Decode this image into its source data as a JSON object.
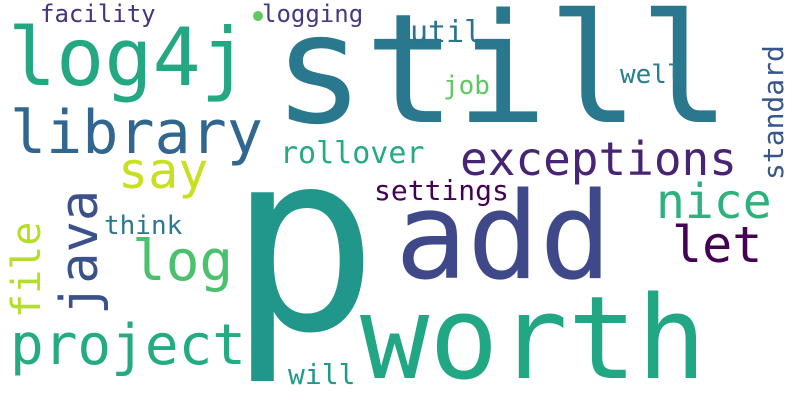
{
  "words": {
    "p": {
      "text": "p",
      "color": "#21968b"
    },
    "still": {
      "text": "still",
      "color": "#2a788e"
    },
    "worth": {
      "text": "worth",
      "color": "#22a784"
    },
    "add": {
      "text": "add",
      "color": "#3f4989"
    },
    "log4j": {
      "text": "log4j",
      "color": "#23a883"
    },
    "library": {
      "text": "library",
      "color": "#31668e"
    },
    "exceptions": {
      "text": "exceptions",
      "color": "#482475"
    },
    "project": {
      "text": "project",
      "color": "#25ab82"
    },
    "java": {
      "text": "java",
      "color": "#3b518b"
    },
    "say": {
      "text": "say",
      "color": "#c8e020"
    },
    "log": {
      "text": "log",
      "color": "#4ac16d"
    },
    "nice": {
      "text": "nice",
      "color": "#2db27d"
    },
    "let": {
      "text": "let",
      "color": "#440154"
    },
    "file": {
      "text": "file",
      "color": "#b5de2b"
    },
    "rollover": {
      "text": "rollover",
      "color": "#25ab82"
    },
    "settings": {
      "text": "settings",
      "color": "#440154"
    },
    "standard": {
      "text": "standard",
      "color": "#39568c"
    },
    "facility": {
      "text": "facility",
      "color": "#46327e"
    },
    "logging": {
      "text": "logging",
      "color": "#443983"
    },
    "util": {
      "text": "util",
      "color": "#2c738e"
    },
    "well": {
      "text": "well",
      "color": "#287d8e"
    },
    "job": {
      "text": "job",
      "color": "#5ec962"
    },
    "think": {
      "text": "think",
      "color": "#2a788e"
    },
    "will": {
      "text": "will",
      "color": "#1f9a8a"
    }
  },
  "dot_color": "#5ec962"
}
